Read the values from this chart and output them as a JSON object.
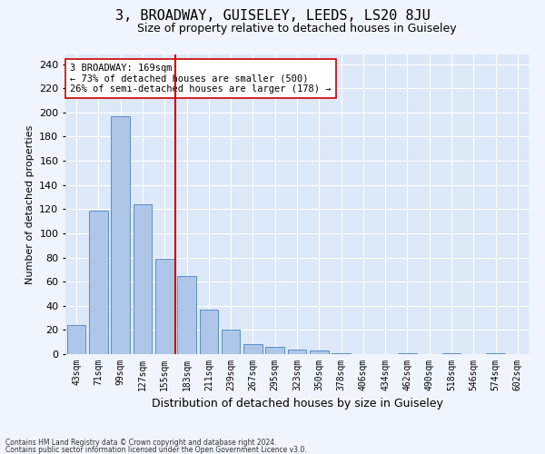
{
  "title1": "3, BROADWAY, GUISELEY, LEEDS, LS20 8JU",
  "title2": "Size of property relative to detached houses in Guiseley",
  "xlabel": "Distribution of detached houses by size in Guiseley",
  "ylabel": "Number of detached properties",
  "categories": [
    "43sqm",
    "71sqm",
    "99sqm",
    "127sqm",
    "155sqm",
    "183sqm",
    "211sqm",
    "239sqm",
    "267sqm",
    "295sqm",
    "323sqm",
    "350sqm",
    "378sqm",
    "406sqm",
    "434sqm",
    "462sqm",
    "490sqm",
    "518sqm",
    "546sqm",
    "574sqm",
    "602sqm"
  ],
  "values": [
    24,
    119,
    197,
    124,
    79,
    65,
    37,
    20,
    8,
    6,
    4,
    3,
    1,
    0,
    0,
    1,
    0,
    1,
    0,
    1,
    0
  ],
  "bar_color": "#aec6e8",
  "bar_edge_color": "#5b8fc9",
  "vline_x": 4.5,
  "vline_color": "#cc0000",
  "annotation_text": "3 BROADWAY: 169sqm\n← 73% of detached houses are smaller (500)\n26% of semi-detached houses are larger (178) →",
  "annotation_box_color": "#ffffff",
  "annotation_box_edge": "#cc0000",
  "footer1": "Contains HM Land Registry data © Crown copyright and database right 2024.",
  "footer2": "Contains public sector information licensed under the Open Government Licence v3.0.",
  "ylim": [
    0,
    248
  ],
  "yticks": [
    0,
    20,
    40,
    60,
    80,
    100,
    120,
    140,
    160,
    180,
    200,
    220,
    240
  ],
  "background_color": "#dde8f8",
  "grid_color": "#ffffff",
  "fig_facecolor": "#f0f4fd",
  "title1_fontsize": 11,
  "title2_fontsize": 9,
  "tick_fontsize": 7,
  "ylabel_fontsize": 8,
  "xlabel_fontsize": 9,
  "annotation_fontsize": 7.5
}
